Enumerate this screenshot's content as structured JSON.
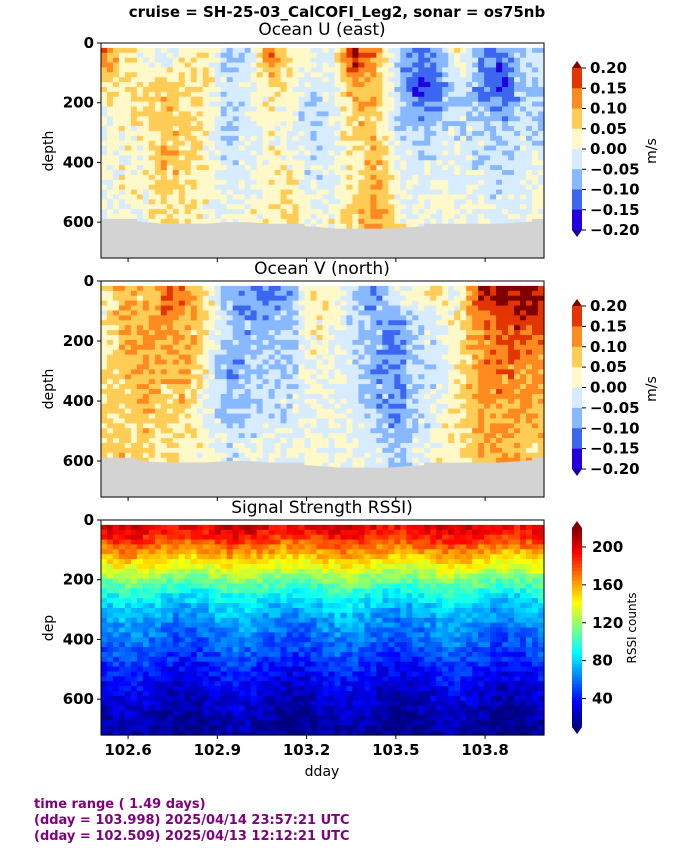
{
  "suptitle": "cruise = SH-25-03_CalCOFI_Leg2,  sonar = os75nb",
  "colors": {
    "footer": "#800080",
    "bottom_mask": "#d3d3d3"
  },
  "chart_data": [
    {
      "type": "heatmap",
      "title": "Ocean U (east)",
      "xlabel": "",
      "ylabel": "depth",
      "xlim": [
        102.509,
        103.998
      ],
      "ylim": [
        720,
        0
      ],
      "yticks": [
        "0",
        "200",
        "400",
        "600"
      ],
      "xticks": [
        "102.6",
        "102.9",
        "103.2",
        "103.5",
        "103.8"
      ],
      "colorbar": {
        "label": "m/s",
        "range": [
          -0.2,
          0.2
        ],
        "ticks": [
          "0.20",
          "0.15",
          "0.10",
          "0.05",
          "0.00",
          "−0.05",
          "−0.10",
          "−0.15",
          "−0.20"
        ],
        "colormap": "jet-diverging"
      },
      "bottom_depth": [
        590,
        590,
        600,
        605,
        605,
        605,
        600,
        600,
        605,
        610,
        615,
        620,
        630,
        625,
        620,
        615,
        612,
        610,
        610,
        605,
        600,
        595
      ],
      "values_east": [
        0.1,
        0.06,
        0.03,
        0.08,
        0.12,
        0.07,
        0.0,
        -0.02,
        0.15,
        0.05,
        -0.03,
        0.04,
        0.08,
        -0.08,
        -0.05,
        -0.15,
        -0.1,
        0.0,
        -0.06,
        -0.12,
        -0.08,
        -0.05
      ],
      "depth_samples": [
        50,
        150,
        300,
        450,
        560
      ],
      "profile_U": [
        [
          0.15,
          0.06,
          0.02,
          0.0,
          0.03,
          0.04,
          -0.05,
          -0.03,
          0.16,
          0.05,
          -0.02,
          0.0,
          0.2,
          0.12,
          -0.05,
          -0.12,
          -0.1,
          0.04,
          -0.08,
          -0.12,
          -0.05,
          -0.04
        ],
        [
          0.05,
          0.03,
          0.06,
          0.08,
          0.04,
          0.05,
          -0.04,
          -0.02,
          0.05,
          0.03,
          -0.04,
          -0.01,
          0.1,
          0.08,
          -0.04,
          -0.16,
          -0.12,
          -0.03,
          -0.1,
          -0.15,
          -0.06,
          -0.05
        ],
        [
          0.0,
          0.02,
          0.03,
          0.09,
          0.06,
          0.03,
          -0.06,
          -0.01,
          0.02,
          0.0,
          -0.05,
          -0.02,
          0.06,
          0.08,
          -0.02,
          -0.05,
          -0.03,
          -0.02,
          -0.03,
          -0.06,
          -0.02,
          -0.04
        ],
        [
          -0.02,
          0.03,
          0.02,
          0.08,
          0.06,
          0.02,
          -0.03,
          0.0,
          0.03,
          0.04,
          -0.03,
          0.0,
          0.05,
          0.1,
          0.02,
          -0.02,
          -0.01,
          -0.02,
          -0.02,
          -0.04,
          -0.02,
          0.0
        ],
        [
          0.0,
          0.02,
          0.01,
          0.05,
          0.04,
          0.02,
          0.0,
          0.02,
          0.03,
          0.05,
          0.0,
          0.02,
          0.06,
          0.1,
          0.04,
          0.0,
          0.02,
          0.0,
          0.0,
          -0.02,
          -0.01,
          0.0
        ]
      ]
    },
    {
      "type": "heatmap",
      "title": "Ocean V (north)",
      "xlabel": "",
      "ylabel": "depth",
      "xlim": [
        102.509,
        103.998
      ],
      "ylim": [
        720,
        0
      ],
      "yticks": [
        "0",
        "200",
        "400",
        "600"
      ],
      "xticks": [
        "102.6",
        "102.9",
        "103.2",
        "103.5",
        "103.8"
      ],
      "colorbar": {
        "label": "m/s",
        "range": [
          -0.2,
          0.2
        ],
        "ticks": [
          "0.20",
          "0.15",
          "0.10",
          "0.05",
          "0.00",
          "−0.05",
          "−0.10",
          "−0.15",
          "−0.20"
        ],
        "colormap": "jet-diverging"
      },
      "bottom_depth": [
        590,
        590,
        600,
        605,
        605,
        605,
        600,
        600,
        605,
        610,
        615,
        620,
        630,
        625,
        620,
        615,
        612,
        610,
        610,
        605,
        600,
        595
      ],
      "depth_samples": [
        50,
        150,
        300,
        450,
        560
      ],
      "profile_V": [
        [
          0.02,
          0.1,
          0.06,
          0.15,
          0.12,
          0.06,
          -0.06,
          -0.1,
          -0.12,
          -0.08,
          0.05,
          0.02,
          -0.05,
          -0.1,
          0.0,
          0.02,
          0.05,
          0.0,
          0.2,
          0.22,
          0.22,
          0.2
        ],
        [
          0.0,
          0.1,
          0.1,
          0.12,
          0.1,
          0.05,
          -0.05,
          -0.08,
          -0.06,
          -0.06,
          0.04,
          0.0,
          -0.04,
          -0.06,
          -0.12,
          -0.04,
          -0.02,
          0.05,
          0.12,
          0.15,
          0.18,
          0.16
        ],
        [
          0.05,
          0.08,
          0.1,
          0.08,
          0.1,
          0.02,
          -0.1,
          -0.06,
          -0.04,
          -0.04,
          0.02,
          0.0,
          -0.03,
          -0.08,
          -0.1,
          -0.05,
          -0.02,
          0.04,
          0.12,
          0.14,
          0.12,
          0.1
        ],
        [
          0.04,
          0.06,
          0.08,
          0.06,
          0.06,
          0.0,
          -0.06,
          -0.05,
          -0.03,
          -0.02,
          0.0,
          0.0,
          -0.02,
          -0.06,
          -0.1,
          -0.04,
          0.0,
          0.05,
          0.1,
          0.1,
          0.1,
          0.08
        ],
        [
          0.06,
          0.08,
          0.06,
          0.04,
          0.04,
          0.02,
          -0.02,
          -0.02,
          0.0,
          0.0,
          0.02,
          0.0,
          0.0,
          -0.02,
          -0.05,
          -0.02,
          0.02,
          0.05,
          0.08,
          0.1,
          0.08,
          0.06
        ]
      ]
    },
    {
      "type": "heatmap",
      "title": "Signal Strength RSSI)",
      "xlabel": "dday",
      "ylabel": "dep",
      "xlim": [
        102.509,
        103.998
      ],
      "ylim": [
        720,
        0
      ],
      "yticks": [
        "0",
        "200",
        "400",
        "600"
      ],
      "xticks": [
        "102.6",
        "102.9",
        "103.2",
        "103.5",
        "103.8"
      ],
      "colorbar": {
        "label": "RSSI counts",
        "range": [
          10,
          220
        ],
        "ticks": [
          "200",
          "160",
          "120",
          "80",
          "40"
        ],
        "colormap": "jet"
      },
      "depth_samples": [
        20,
        60,
        100,
        150,
        200,
        250,
        300,
        350,
        400,
        450,
        500,
        550,
        600,
        650,
        700
      ],
      "rssi_profile": [
        200,
        185,
        165,
        140,
        115,
        90,
        75,
        65,
        58,
        50,
        40,
        32,
        25,
        20,
        15
      ]
    }
  ],
  "footer": {
    "line1": "time range ( 1.49 days)",
    "line2": "(dday = 103.998) 2025/04/14 23:57:21 UTC",
    "line3": "(dday = 102.509) 2025/04/13 12:12:21 UTC"
  }
}
